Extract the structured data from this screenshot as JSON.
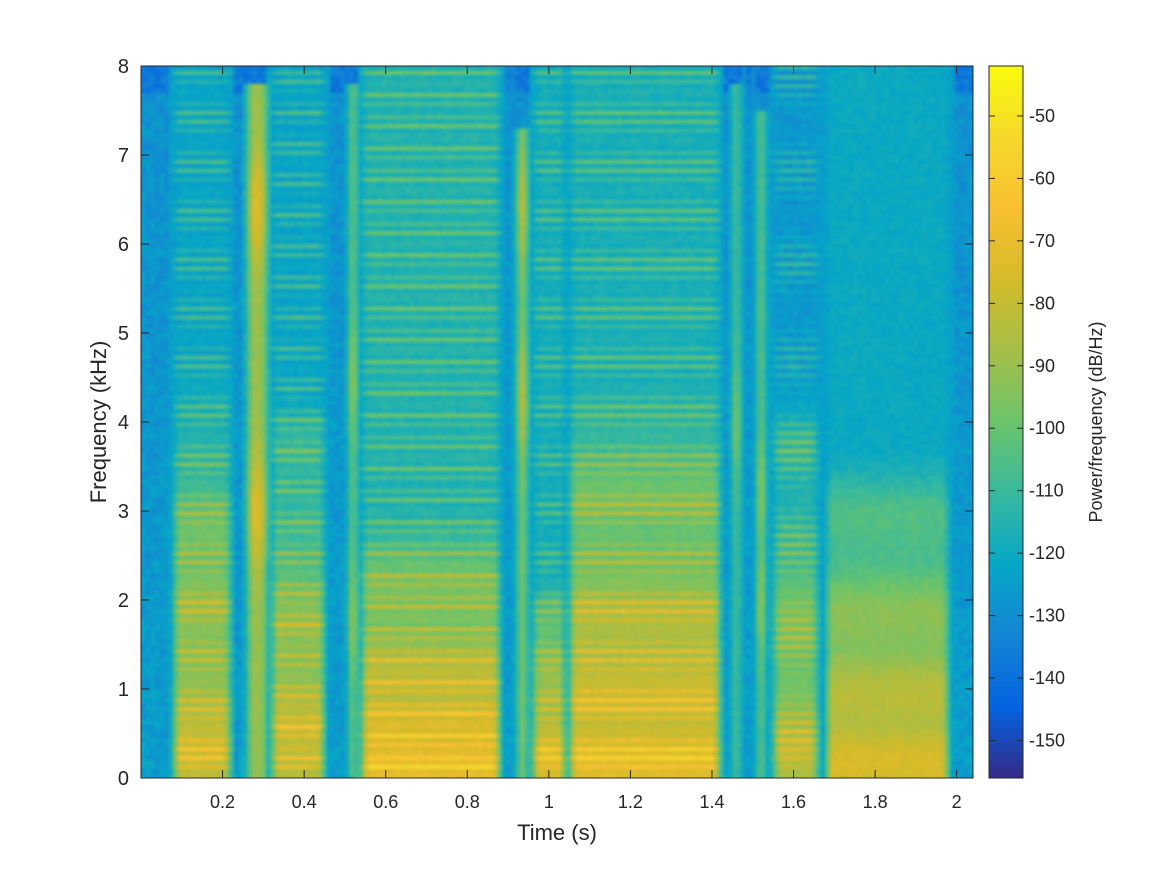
{
  "chart_data": {
    "type": "heatmap",
    "title": "",
    "xlabel": "Time (s)",
    "ylabel": "Frequency (kHz)",
    "colorbar_label": "Power/frequency (dB/Hz)",
    "xlim": [
      0.0,
      2.04
    ],
    "ylim": [
      0,
      8
    ],
    "x_ticks": [
      0.2,
      0.4,
      0.6,
      0.8,
      1,
      1.2,
      1.4,
      1.6,
      1.8,
      2
    ],
    "x_tick_labels": [
      "0.2",
      "0.4",
      "0.6",
      "0.8",
      "1",
      "1.2",
      "1.4",
      "1.6",
      "1.8",
      "2"
    ],
    "y_ticks": [
      0,
      1,
      2,
      3,
      4,
      5,
      6,
      7,
      8
    ],
    "y_tick_labels": [
      "0",
      "1",
      "2",
      "3",
      "4",
      "5",
      "6",
      "7",
      "8"
    ],
    "clim": [
      -156,
      -42
    ],
    "colorbar_ticks": [
      -50,
      -60,
      -70,
      -80,
      -90,
      -100,
      -110,
      -120,
      -130,
      -140,
      -150
    ],
    "colorbar_tick_labels": [
      "-50",
      "-60",
      "-70",
      "-80",
      "-90",
      "-100",
      "-110",
      "-120",
      "-130",
      "-140",
      "-150"
    ],
    "colormap": "parula",
    "grid": false,
    "background_level_db": -125,
    "segments": [
      {
        "t0": 0.08,
        "t1": 0.22,
        "f0_hz": 110,
        "harmonic_top_khz": 4.5,
        "peak_db": -62,
        "formants_khz": [
          0.4,
          2.0,
          2.8
        ]
      },
      {
        "t0": 0.26,
        "t1": 0.31,
        "f0_hz": 0,
        "harmonic_top_khz": 7.8,
        "peak_db": -68,
        "formants_khz": [
          6.4,
          3.0
        ]
      },
      {
        "t0": 0.32,
        "t1": 0.45,
        "f0_hz": 115,
        "harmonic_top_khz": 4.0,
        "peak_db": -62,
        "formants_khz": [
          0.6,
          1.8,
          3.8
        ]
      },
      {
        "t0": 0.51,
        "t1": 0.53,
        "f0_hz": 0,
        "harmonic_top_khz": 7.8,
        "peak_db": -72,
        "formants_khz": [
          1.8,
          4.5
        ]
      },
      {
        "t0": 0.54,
        "t1": 0.88,
        "f0_hz": 120,
        "harmonic_top_khz": 2.8,
        "peak_db": -55,
        "formants_khz": [
          0.2,
          0.6,
          1.2,
          2.2
        ]
      },
      {
        "t0": 0.92,
        "t1": 0.95,
        "f0_hz": 0,
        "harmonic_top_khz": 7.3,
        "peak_db": -76,
        "formants_khz": [
          6.4,
          4.3
        ]
      },
      {
        "t0": 0.96,
        "t1": 1.04,
        "f0_hz": 110,
        "harmonic_top_khz": 2.0,
        "peak_db": -58,
        "formants_khz": [
          0.3,
          1.2,
          1.8
        ]
      },
      {
        "t0": 1.05,
        "t1": 1.42,
        "f0_hz": 110,
        "harmonic_top_khz": 4.3,
        "peak_db": -57,
        "formants_khz": [
          0.2,
          1.0,
          1.8,
          3.2
        ]
      },
      {
        "t0": 1.45,
        "t1": 1.47,
        "f0_hz": 0,
        "harmonic_top_khz": 7.8,
        "peak_db": -80,
        "formants_khz": [
          4.0
        ]
      },
      {
        "t0": 1.51,
        "t1": 1.53,
        "f0_hz": 0,
        "harmonic_top_khz": 7.5,
        "peak_db": -74,
        "formants_khz": [
          2.0,
          3.2
        ]
      },
      {
        "t0": 1.55,
        "t1": 1.66,
        "f0_hz": 105,
        "harmonic_top_khz": 4.5,
        "peak_db": -68,
        "formants_khz": [
          0.3,
          1.9,
          3.8
        ]
      },
      {
        "t0": 1.68,
        "t1": 1.98,
        "f0_hz": 100,
        "harmonic_top_khz": 3.5,
        "peak_db": -60,
        "formants_khz": [
          0.2,
          1.0,
          1.9,
          3.0
        ]
      }
    ]
  }
}
